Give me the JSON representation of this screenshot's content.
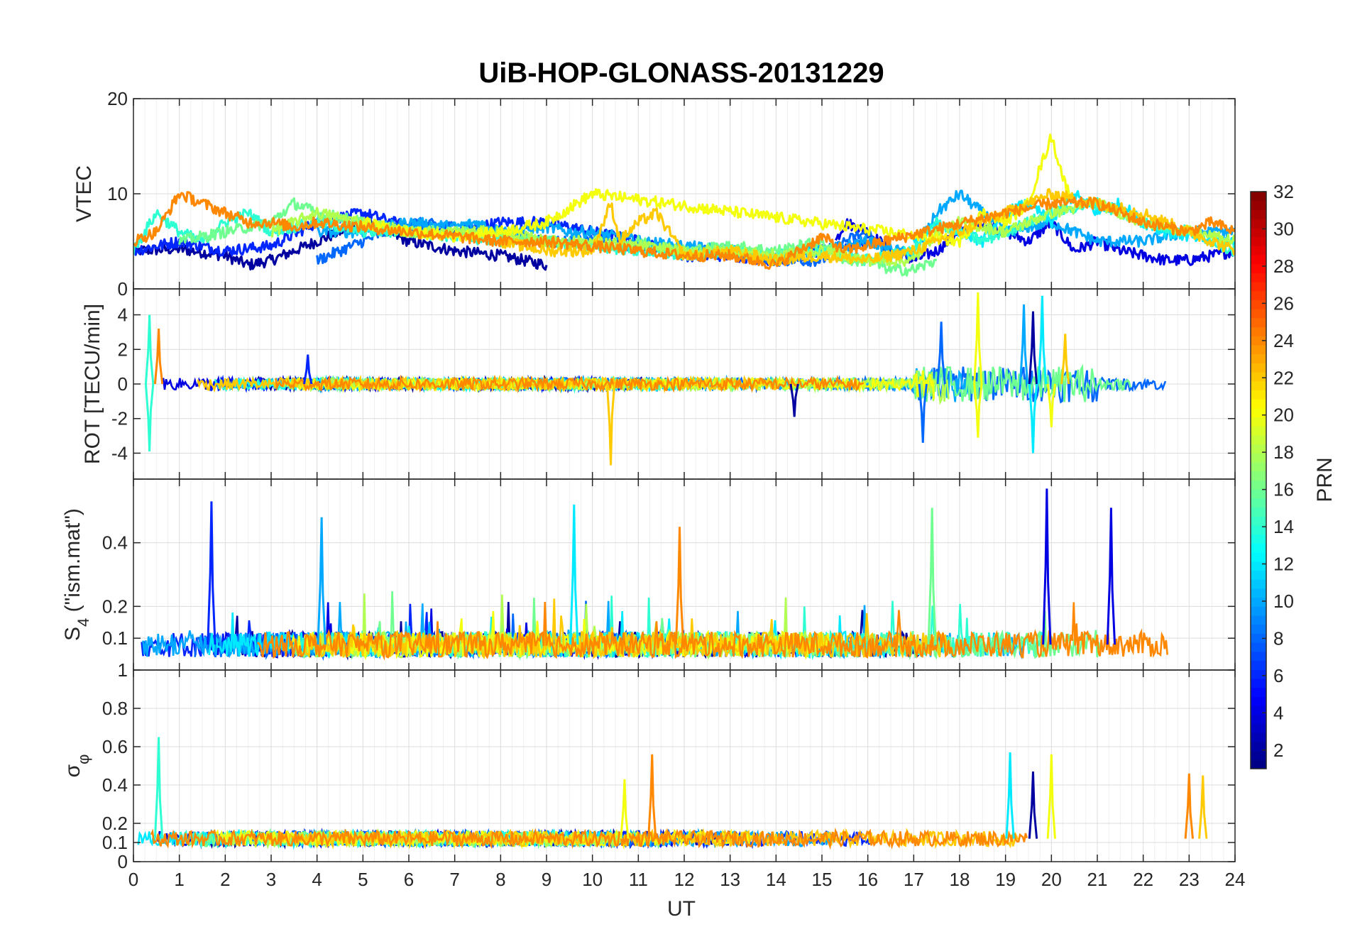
{
  "chart_data": [
    {
      "type": "line",
      "panel": "VTEC",
      "title": "UiB-HOP-GLONASS-20131229",
      "ylabel": "VTEC",
      "xlabel": "",
      "xlim": [
        0,
        24
      ],
      "ylim": [
        0,
        20
      ],
      "yticks": [
        0,
        10,
        20
      ],
      "grid": true,
      "series": [
        {
          "prn": 2,
          "x": [
            0,
            1,
            2,
            2.5,
            3,
            4,
            5,
            6,
            7,
            8,
            9
          ],
          "y": [
            4,
            4.2,
            3.5,
            2.5,
            3,
            5,
            7,
            5,
            4,
            3.5,
            2.5
          ]
        },
        {
          "prn": 4,
          "x": [
            15.3,
            15.5,
            16,
            16.5,
            17,
            17.5,
            18,
            18.5,
            19,
            19.5,
            20,
            20.5,
            21,
            21.5,
            22,
            22.5,
            23,
            23.5,
            24
          ],
          "y": [
            5,
            7,
            6,
            4,
            3,
            4,
            6,
            7,
            6,
            5,
            7,
            4,
            5,
            4,
            3.5,
            3,
            3,
            3.5,
            4
          ]
        },
        {
          "prn": 6,
          "x": [
            0,
            1,
            2,
            3,
            4,
            5,
            6,
            7,
            8,
            9,
            10,
            11,
            12,
            13,
            14,
            15,
            16
          ],
          "y": [
            4,
            5,
            4,
            4.5,
            7,
            8,
            6.5,
            6,
            7,
            7,
            6,
            5,
            3.5,
            3.5,
            3,
            4,
            5
          ]
        },
        {
          "prn": 8,
          "x": [
            4,
            5,
            6,
            7,
            8,
            9,
            10,
            11,
            12,
            13,
            14,
            15,
            15.5,
            16,
            16.5
          ],
          "y": [
            3,
            5,
            7,
            6.5,
            6,
            5,
            5,
            4.5,
            4,
            4,
            3,
            3,
            5,
            6,
            3
          ]
        },
        {
          "prn": 10,
          "x": [
            4,
            5,
            6,
            7,
            7.5,
            8,
            9,
            9.5,
            10,
            11,
            12,
            13,
            14,
            15,
            16,
            17,
            17.5,
            18,
            19,
            20,
            21,
            22,
            23,
            24
          ],
          "y": [
            6,
            6,
            7,
            6.5,
            7,
            6,
            6.5,
            6,
            6,
            5,
            4.5,
            4,
            3.5,
            4,
            5,
            3.5,
            8,
            10,
            6,
            7,
            5,
            5,
            6,
            6
          ]
        },
        {
          "prn": 12,
          "x": [
            17,
            17.5,
            18,
            18.5,
            19,
            19.5,
            20,
            20.5,
            21,
            21.5,
            22,
            22.5,
            23,
            23.5,
            24
          ],
          "y": [
            5,
            7,
            6,
            5,
            8,
            9,
            7,
            10,
            8,
            9,
            7,
            6,
            5.5,
            5,
            5
          ]
        },
        {
          "prn": 14,
          "x": [
            0,
            0.5,
            1,
            1.5,
            2,
            2.5,
            3,
            4,
            5,
            6,
            7,
            8,
            9,
            10,
            11,
            12,
            13,
            14,
            15,
            16,
            17,
            17.5,
            18,
            18.5,
            19,
            20,
            21,
            22,
            23,
            24
          ],
          "y": [
            4,
            8,
            6,
            5,
            7,
            8,
            6,
            7,
            6,
            6,
            5.5,
            5,
            5,
            4.5,
            4,
            3.5,
            4,
            3.5,
            4,
            3,
            4,
            7,
            6,
            5,
            6,
            8,
            9,
            7,
            6,
            4
          ]
        },
        {
          "prn": 16,
          "x": [
            1,
            2,
            3,
            3.5,
            4,
            5,
            6,
            7,
            8,
            9,
            10,
            11,
            12,
            13,
            14,
            15,
            15.5,
            16,
            16.5,
            17,
            17.5
          ],
          "y": [
            5,
            6,
            7,
            9,
            8,
            7,
            6,
            6,
            5.5,
            5,
            4.5,
            5,
            4,
            4.5,
            4,
            5,
            3,
            3,
            2,
            2,
            3
          ]
        },
        {
          "prn": 18,
          "x": [
            3,
            4,
            5,
            6,
            7,
            8,
            9,
            10,
            11,
            12,
            13,
            14,
            15,
            16,
            17,
            17.5,
            18,
            19,
            20,
            21,
            22,
            23,
            24
          ],
          "y": [
            6,
            8,
            7,
            6,
            6,
            6,
            5,
            5,
            4.5,
            4,
            4,
            3.5,
            4,
            3,
            3,
            6,
            7,
            6,
            8,
            9,
            7,
            6,
            5
          ]
        },
        {
          "prn": 20,
          "x": [
            5,
            6,
            7,
            8,
            9,
            9.5,
            10,
            18,
            18.5,
            19,
            19.5,
            19.7,
            20,
            20.3,
            20.5
          ],
          "y": [
            7,
            6,
            5.5,
            6,
            7,
            8.5,
            10,
            5,
            8,
            7,
            9,
            12,
            16,
            11,
            9
          ]
        },
        {
          "prn": 22,
          "x": [
            8,
            9,
            10,
            10.4,
            10.6,
            11,
            11.4,
            12,
            13,
            14,
            15,
            16,
            17,
            18,
            19,
            20,
            21,
            22,
            23,
            24
          ],
          "y": [
            5,
            4,
            4,
            9,
            5,
            7,
            8,
            3.5,
            4,
            3,
            3.5,
            3,
            4,
            6,
            8,
            10,
            9,
            8,
            6,
            4
          ]
        },
        {
          "prn": 24,
          "x": [
            0,
            0.5,
            1,
            1.5,
            2,
            2.5,
            3,
            3.5,
            4,
            5,
            6,
            7,
            8,
            9,
            10,
            11,
            12,
            13,
            14,
            15,
            15.5,
            19,
            20,
            21,
            22,
            23,
            23.5,
            24
          ],
          "y": [
            5,
            6,
            10,
            9,
            8,
            7,
            7,
            6.5,
            7,
            6.5,
            6,
            5.5,
            5,
            5,
            4.5,
            4,
            3.5,
            3.5,
            2.5,
            5.5,
            4,
            8,
            9,
            9,
            7,
            6,
            7,
            6
          ]
        }
      ]
    },
    {
      "type": "line",
      "panel": "ROT",
      "ylabel": "ROT [TECU/min]",
      "xlabel": "",
      "xlim": [
        0,
        24
      ],
      "ylim": [
        -5.5,
        5.5
      ],
      "yticks": [
        -4,
        -2,
        0,
        2,
        4
      ],
      "grid": true,
      "note_spikes": [
        {
          "x": 0.35,
          "y": -3.9,
          "prn": 14
        },
        {
          "x": 0.35,
          "y": 4.0,
          "prn": 14
        },
        {
          "x": 0.55,
          "y": 3.2,
          "prn": 24
        },
        {
          "x": 3.8,
          "y": 1.7,
          "prn": 6
        },
        {
          "x": 10.4,
          "y": -4.7,
          "prn": 22
        },
        {
          "x": 14.4,
          "y": -1.9,
          "prn": 2
        },
        {
          "x": 17.2,
          "y": -3.4,
          "prn": 8
        },
        {
          "x": 17.6,
          "y": 3.6,
          "prn": 8
        },
        {
          "x": 18.4,
          "y": 5.3,
          "prn": 20
        },
        {
          "x": 18.4,
          "y": -3.1,
          "prn": 20
        },
        {
          "x": 19.4,
          "y": 4.6,
          "prn": 10
        },
        {
          "x": 19.6,
          "y": -4.0,
          "prn": 12
        },
        {
          "x": 19.6,
          "y": 4.2,
          "prn": 2
        },
        {
          "x": 19.8,
          "y": 5.1,
          "prn": 12
        },
        {
          "x": 20.0,
          "y": -2.5,
          "prn": 20
        },
        {
          "x": 20.3,
          "y": 2.9,
          "prn": 22
        }
      ]
    },
    {
      "type": "line",
      "panel": "S4",
      "ylabel": "S4 (\"ism.mat\")",
      "ylabel_main": "S",
      "ylabel_sub": "4",
      "ylabel_rest": " (\"ism.mat\")",
      "xlabel": "",
      "xlim": [
        0,
        24
      ],
      "ylim": [
        0,
        0.6
      ],
      "yticks": [
        0.1,
        0.2,
        0.4
      ],
      "grid": true,
      "peaks": [
        {
          "x": 1.7,
          "y": 0.53,
          "prn": 6
        },
        {
          "x": 4.1,
          "y": 0.48,
          "prn": 10
        },
        {
          "x": 9.6,
          "y": 0.52,
          "prn": 12
        },
        {
          "x": 11.9,
          "y": 0.45,
          "prn": 24
        },
        {
          "x": 17.4,
          "y": 0.51,
          "prn": 16
        },
        {
          "x": 19.9,
          "y": 0.57,
          "prn": 4
        },
        {
          "x": 21.3,
          "y": 0.51,
          "prn": 4
        }
      ]
    },
    {
      "type": "line",
      "panel": "sigma_phi",
      "ylabel": "σφ",
      "ylabel_main": "σ",
      "ylabel_sub": "φ",
      "xlabel": "UT",
      "xlim": [
        0,
        24
      ],
      "ylim": [
        0,
        1
      ],
      "yticks": [
        0,
        0.1,
        0.2,
        0.4,
        0.6,
        0.8,
        1
      ],
      "ytick_labels": [
        "0",
        "0.1",
        "0.2",
        "0.4",
        "0.6",
        "0.8",
        "1"
      ],
      "xticks": [
        0,
        1,
        2,
        3,
        4,
        5,
        6,
        7,
        8,
        9,
        10,
        11,
        12,
        13,
        14,
        15,
        16,
        17,
        18,
        19,
        20,
        21,
        22,
        23,
        24
      ],
      "grid": true,
      "peaks": [
        {
          "x": 0.55,
          "y": 0.65,
          "prn": 14
        },
        {
          "x": 10.7,
          "y": 0.43,
          "prn": 20
        },
        {
          "x": 11.3,
          "y": 0.56,
          "prn": 24
        },
        {
          "x": 19.1,
          "y": 0.57,
          "prn": 12
        },
        {
          "x": 19.6,
          "y": 0.47,
          "prn": 2
        },
        {
          "x": 20.0,
          "y": 0.56,
          "prn": 20
        },
        {
          "x": 23.0,
          "y": 0.46,
          "prn": 24
        },
        {
          "x": 23.3,
          "y": 0.45,
          "prn": 22
        }
      ]
    }
  ],
  "colorbar": {
    "label": "PRN",
    "min": 1,
    "max": 32,
    "ticks": [
      2,
      4,
      6,
      8,
      10,
      12,
      14,
      16,
      18,
      20,
      22,
      24,
      26,
      28,
      30,
      32
    ],
    "colormap": "jet"
  },
  "xaxis": {
    "label": "UT",
    "ticks": [
      0,
      1,
      2,
      3,
      4,
      5,
      6,
      7,
      8,
      9,
      10,
      11,
      12,
      13,
      14,
      15,
      16,
      17,
      18,
      19,
      20,
      21,
      22,
      23,
      24
    ]
  },
  "figure_title": "UiB-HOP-GLONASS-20131229"
}
